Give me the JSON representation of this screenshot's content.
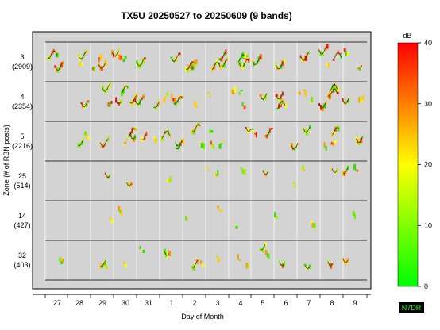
{
  "chart_data": {
    "type": "heatmap",
    "title": "TX5U 20250527 to 20250609 (9 bands)",
    "xlabel": "Day of Month",
    "ylabel": "Zone (# of RBN posts)",
    "x_ticks": [
      "27",
      "28",
      "29",
      "30",
      "31",
      "1",
      "2",
      "3",
      "4",
      "5",
      "6",
      "7",
      "8",
      "9"
    ],
    "rows": [
      {
        "zone": "3",
        "posts": "(2909)"
      },
      {
        "zone": "4",
        "posts": "(2354)"
      },
      {
        "zone": "5",
        "posts": "(2216)"
      },
      {
        "zone": "25",
        "posts": "(514)"
      },
      {
        "zone": "14",
        "posts": "(427)"
      },
      {
        "zone": "32",
        "posts": "(403)"
      }
    ],
    "colorbar": {
      "label": "dB",
      "range": [
        0,
        40
      ],
      "ticks": [
        "0",
        "10",
        "20",
        "30",
        "40"
      ],
      "colors": [
        "#00ff00",
        "#ffff00",
        "#ff0000"
      ]
    },
    "grid": true,
    "background_color": "#d3d3d3",
    "watermark": "N7DR"
  }
}
